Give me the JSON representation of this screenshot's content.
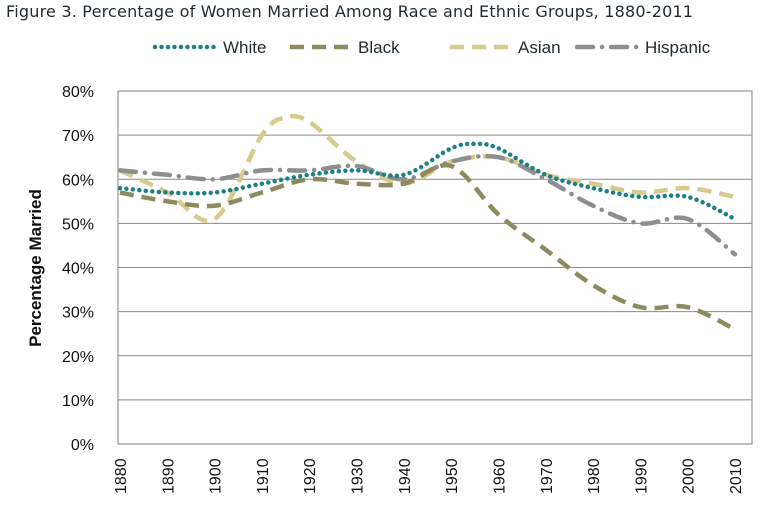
{
  "chart_data": {
    "type": "line",
    "title": "Figure 3. Percentage of Women Married Among Race and Ethnic Groups, 1880-2011",
    "xlabel": "",
    "ylabel": "Percentage Married",
    "xlim": [
      1880,
      2010
    ],
    "ylim": [
      0,
      80
    ],
    "x_ticks": [
      "1880",
      "1890",
      "1900",
      "1910",
      "1920",
      "1930",
      "1940",
      "1950",
      "1960",
      "1970",
      "1980",
      "1990",
      "2000",
      "2010"
    ],
    "y_ticks": [
      "0%",
      "10%",
      "20%",
      "30%",
      "40%",
      "50%",
      "60%",
      "70%",
      "80%"
    ],
    "grid": "horizontal",
    "legend_position": "top",
    "series": [
      {
        "name": "White",
        "color": "#1b7f86",
        "style": "dotted",
        "x": [
          1880,
          1890,
          1900,
          1910,
          1920,
          1930,
          1940,
          1950,
          1955,
          1960,
          1970,
          1980,
          1990,
          2000,
          2010
        ],
        "y": [
          58,
          57,
          57,
          59,
          61,
          62,
          61,
          67,
          68,
          67,
          61,
          58,
          56,
          56,
          51
        ]
      },
      {
        "name": "Black",
        "color": "#8c8a5e",
        "style": "dashed",
        "x": [
          1880,
          1890,
          1900,
          1910,
          1920,
          1930,
          1940,
          1950,
          1960,
          1970,
          1980,
          1990,
          2000,
          2010
        ],
        "y": [
          57,
          55,
          54,
          57,
          60,
          59,
          59,
          63,
          52,
          44,
          36,
          31,
          31,
          26
        ]
      },
      {
        "name": "Asian",
        "color": "#d6cb8c",
        "style": "dashed",
        "x": [
          1880,
          1890,
          1900,
          1910,
          1915,
          1920,
          1930,
          1940,
          1950,
          1960,
          1970,
          1980,
          1990,
          2000,
          2010
        ],
        "y": [
          62,
          57,
          51,
          70,
          74,
          73,
          64,
          59,
          64,
          65,
          61,
          59,
          57,
          58,
          56
        ]
      },
      {
        "name": "Hispanic",
        "color": "#8e8e8e",
        "style": "dashdot",
        "x": [
          1880,
          1890,
          1900,
          1910,
          1920,
          1930,
          1940,
          1950,
          1960,
          1970,
          1980,
          1990,
          2000,
          2010
        ],
        "y": [
          62,
          61,
          60,
          62,
          62,
          63,
          60,
          64,
          65,
          60,
          54,
          50,
          51,
          43
        ]
      }
    ]
  }
}
